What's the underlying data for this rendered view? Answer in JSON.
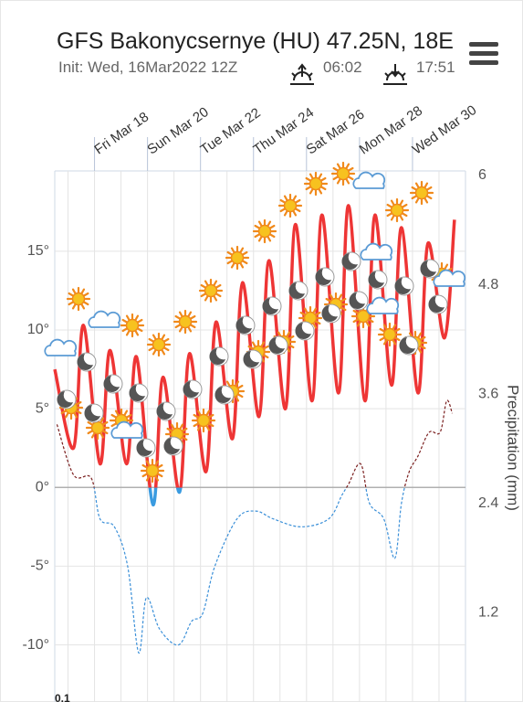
{
  "chart_data": {
    "type": "line",
    "title": "GFS Bakonycsernye (HU) 47.25N, 18E",
    "subtitle": "Init: Wed, 16Mar2022 12Z",
    "sunrise": "06:02",
    "sunset": "17:51",
    "y2_label": "Precipitation (mm)",
    "xlim": [
      0,
      372
    ],
    "xticks": [
      12,
      {
        "value": 36,
        "label": "Fri Mar 18"
      },
      60,
      {
        "value": 84,
        "label": "Sun Mar 20"
      },
      108,
      {
        "value": 132,
        "label": "Tue Mar 22"
      },
      156,
      {
        "value": 180,
        "label": "Thu Mar 24"
      },
      204,
      {
        "value": 228,
        "label": "Sat Mar 26"
      },
      252,
      {
        "value": 276,
        "label": "Mon Mar 28"
      },
      300,
      {
        "value": 324,
        "label": "Wed Mar 30"
      },
      348
    ],
    "ylim": [
      -12,
      20.1
    ],
    "yticks": [
      {
        "value": -10,
        "label": "-10°"
      },
      {
        "value": -5,
        "label": "-5°"
      },
      {
        "value": 0,
        "label": "0°"
      },
      {
        "value": 5,
        "label": "5°"
      },
      {
        "value": 10,
        "label": "10°"
      },
      {
        "value": 15,
        "label": "15°"
      }
    ],
    "y2lim": [
      0.5,
      6.05
    ],
    "y2ticks": [
      1.2,
      2.4,
      3.6,
      4.8,
      6
    ],
    "grid": true,
    "series": [
      {
        "color": "#ee3535",
        "below_zero_color": "#3a9be0",
        "dashed": false,
        "x": [
          0,
          17,
          26,
          41,
          50,
          65,
          74,
          89,
          98,
          113,
          122,
          137,
          146,
          161,
          170,
          185,
          194,
          209,
          218,
          233,
          242,
          257,
          266,
          281,
          290,
          305,
          314,
          329,
          338,
          353,
          362
        ],
        "values": [
          7.5,
          2.5,
          10.3,
          1.5,
          8.7,
          1.5,
          8.3,
          -1.1,
          7.0,
          -0.3,
          8.5,
          1.0,
          10.5,
          3.1,
          13.0,
          4.5,
          14.4,
          5.0,
          16.7,
          5.5,
          17.3,
          6.0,
          17.9,
          5.5,
          17.3,
          6.5,
          16.5,
          6.0,
          15.5,
          9.5,
          17.0
        ]
      },
      {
        "color": "#7a1e1e",
        "below_zero_color": "#3a8fd8",
        "dashed": true,
        "x": [
          2,
          17,
          33,
          41,
          54,
          66,
          76,
          83,
          95,
          112,
          124,
          134,
          145,
          165,
          182,
          198,
          223,
          248,
          260,
          266,
          277,
          285,
          298,
          308,
          314,
          321,
          329,
          339,
          349,
          355,
          360
        ],
        "values": [
          4.0,
          0.8,
          0.6,
          -2.0,
          -2.5,
          -5.0,
          -10.5,
          -7.0,
          -9.0,
          -10.0,
          -8.5,
          -8.0,
          -5.0,
          -2.0,
          -1.5,
          -2.0,
          -2.5,
          -2.0,
          -0.5,
          0.2,
          1.5,
          -1.0,
          -2.0,
          -4.5,
          -1.0,
          1.0,
          2.0,
          3.5,
          3.5,
          5.5,
          4.7
        ]
      }
    ],
    "lower_panel": {
      "yticks": [
        0.1
      ]
    }
  }
}
